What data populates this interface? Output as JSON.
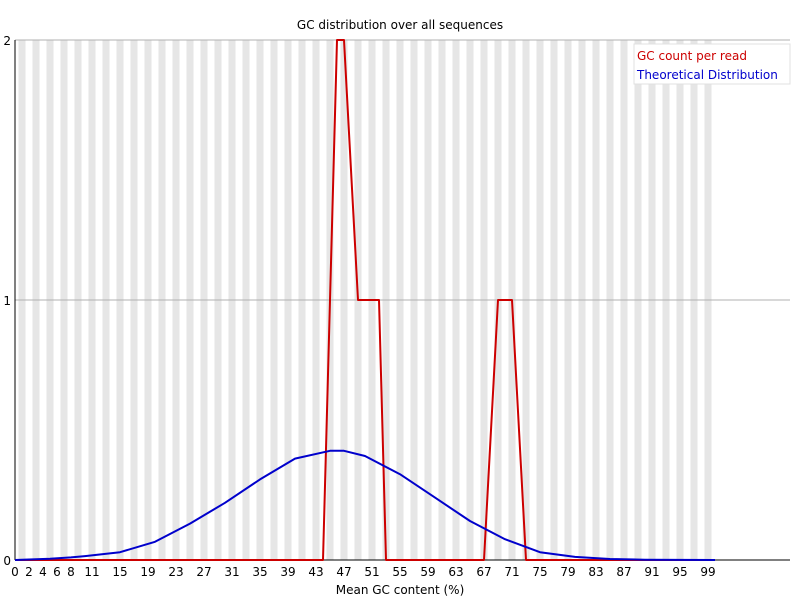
{
  "chart_data": {
    "type": "line",
    "title": "GC distribution over all sequences",
    "xlabel": "Mean GC content (%)",
    "ylabel": "",
    "xlim": [
      0,
      100
    ],
    "ylim": [
      0,
      2
    ],
    "y_ticks": [
      0,
      1,
      2
    ],
    "x_tick_labels": [
      "0",
      "2",
      "4",
      "6",
      "8",
      "11",
      "15",
      "19",
      "23",
      "27",
      "31",
      "35",
      "39",
      "43",
      "47",
      "51",
      "55",
      "59",
      "63",
      "67",
      "71",
      "75",
      "79",
      "83",
      "87",
      "91",
      "95",
      "99"
    ],
    "x_tick_values": [
      0,
      2,
      4,
      6,
      8,
      11,
      15,
      19,
      23,
      27,
      31,
      35,
      39,
      43,
      47,
      51,
      55,
      59,
      63,
      67,
      71,
      75,
      79,
      83,
      87,
      91,
      95,
      99
    ],
    "grid": true,
    "legend_placement": "top-right",
    "series": [
      {
        "name": "GC count per read",
        "color": "#cc0000",
        "x": [
          0,
          44,
          46,
          47,
          49,
          50,
          51,
          52,
          53,
          67,
          69,
          70,
          71,
          72,
          73,
          100
        ],
        "values": [
          0,
          0,
          2,
          2,
          1,
          1,
          1,
          1,
          0,
          0,
          1,
          1,
          1,
          0.5,
          0,
          0
        ]
      },
      {
        "name": "Theoretical Distribution",
        "color": "#0000cc",
        "x": [
          0,
          5,
          8,
          10,
          15,
          20,
          25,
          30,
          35,
          40,
          45,
          47,
          50,
          55,
          60,
          65,
          70,
          75,
          80,
          85,
          90,
          100
        ],
        "values": [
          0,
          0.005,
          0.01,
          0.015,
          0.03,
          0.07,
          0.14,
          0.22,
          0.31,
          0.39,
          0.42,
          0.42,
          0.4,
          0.33,
          0.24,
          0.15,
          0.08,
          0.03,
          0.012,
          0.004,
          0.001,
          0
        ]
      }
    ]
  }
}
